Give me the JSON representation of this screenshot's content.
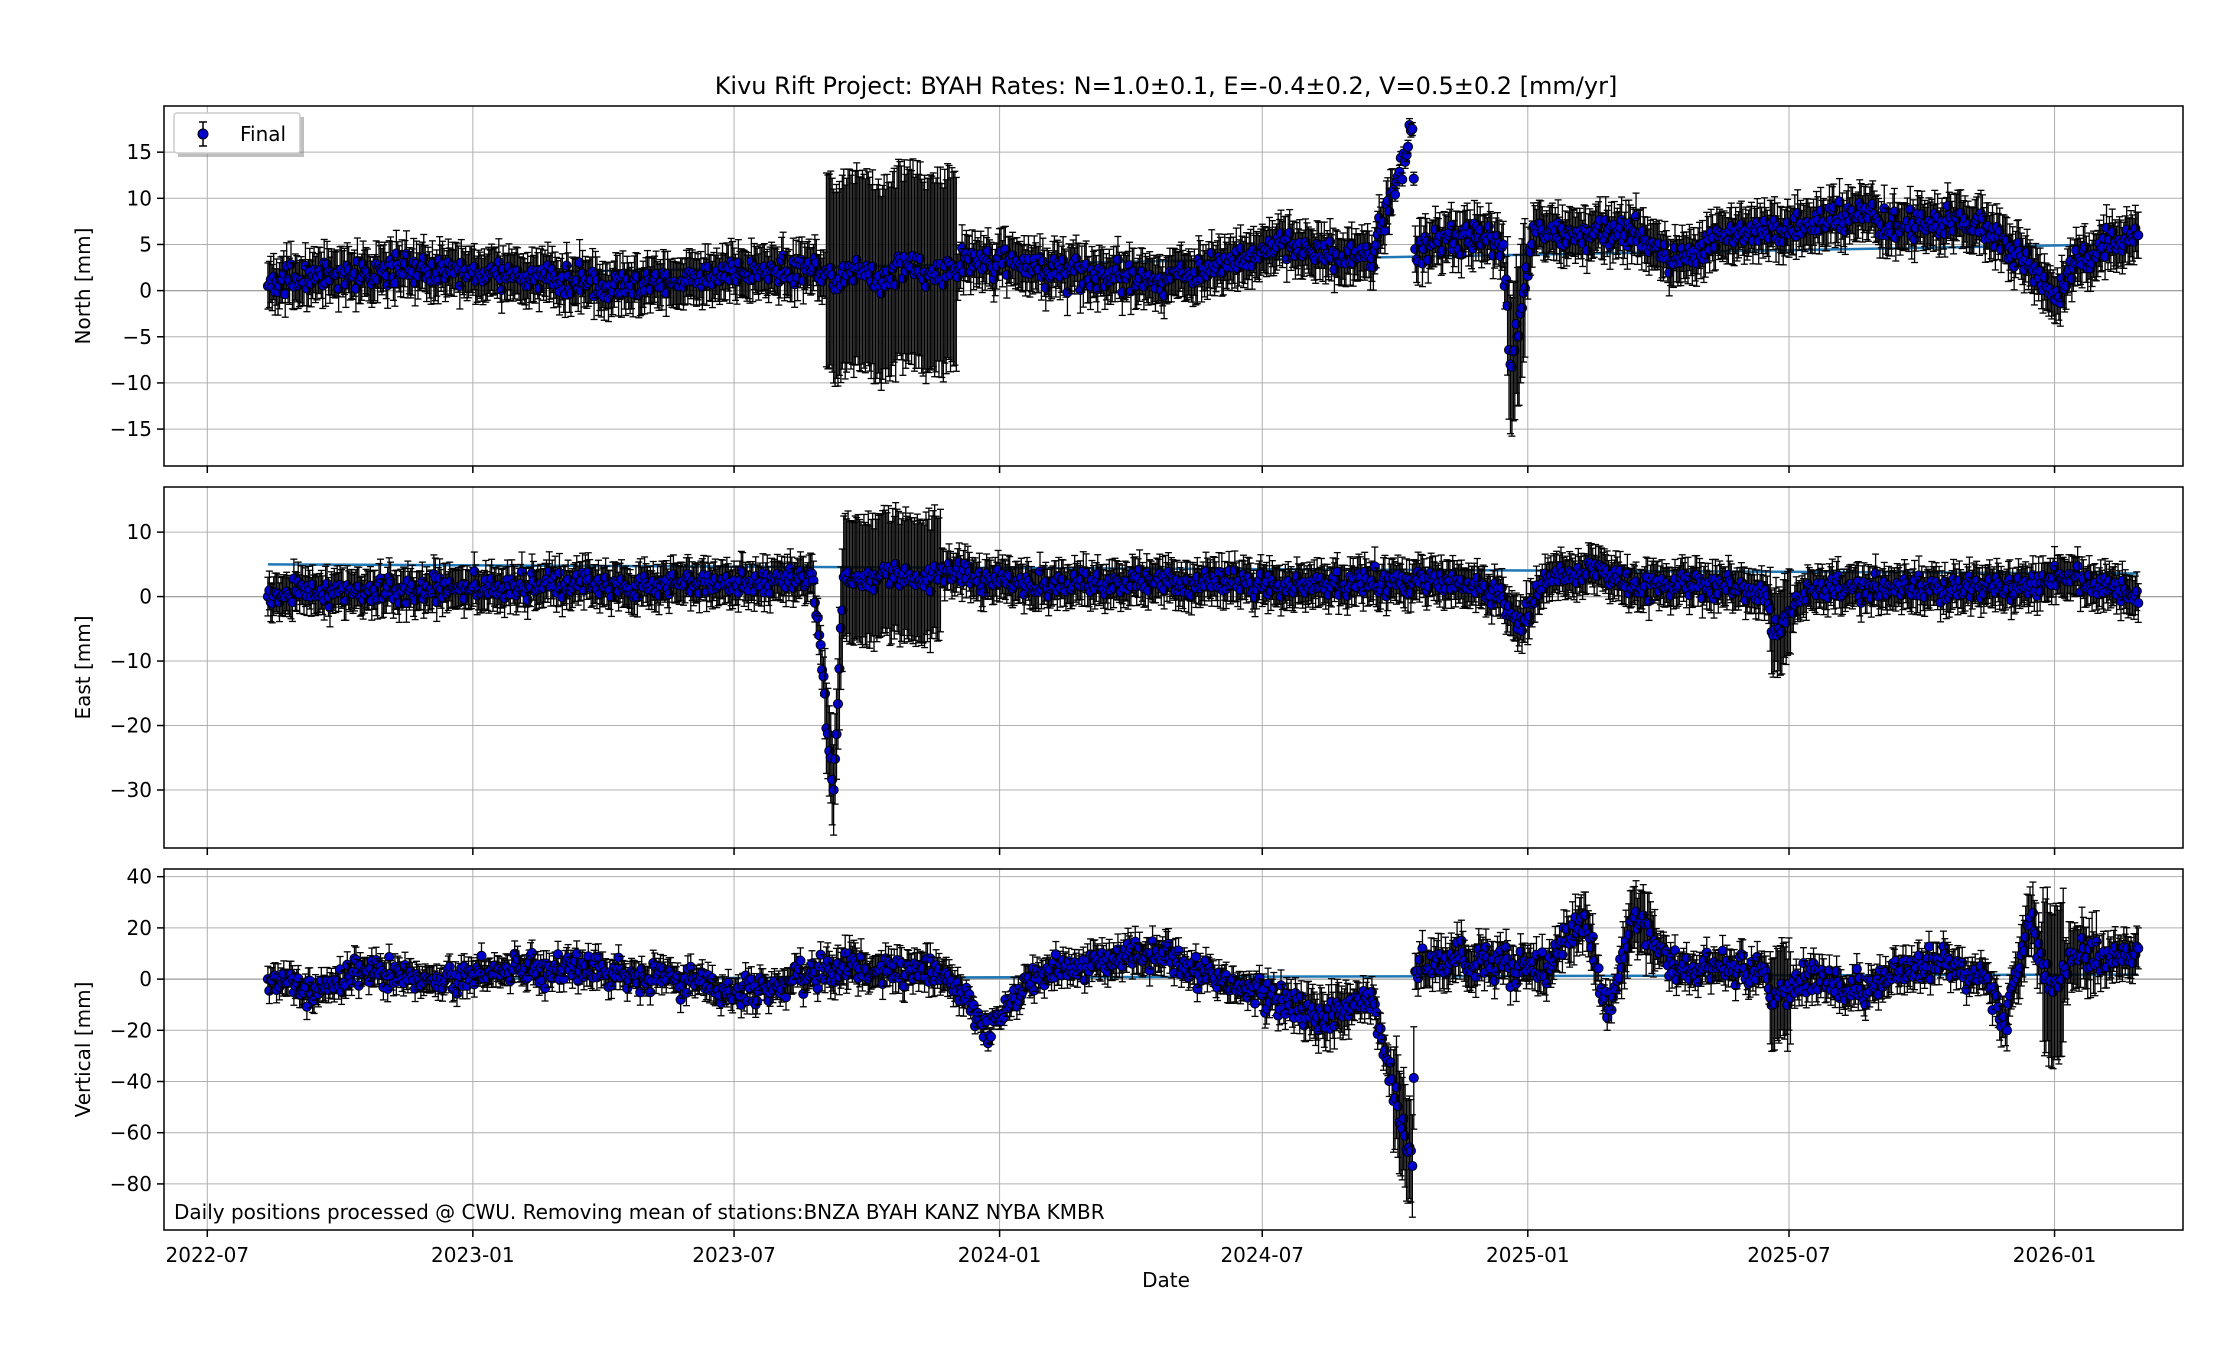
{
  "figure": {
    "title": "Kivu Rift Project: BYAH  Rates: N=1.0±0.1, E=-0.4±0.2, V=0.5±0.2 [mm/yr]",
    "xlabel": "Date",
    "footnote": "Daily positions processed @ CWU. Removing mean of stations:BNZA BYAH KANZ NYBA KMBR",
    "legend_label": "Final",
    "legend_placement": "top-left",
    "marker_color": "#0000cc",
    "fit_color": "#1f77b4",
    "grid": true
  },
  "chart_data": [
    {
      "type": "scatter",
      "panel": "north",
      "title": "",
      "xlabel": "",
      "ylabel": "North [mm]",
      "x_axis": "date",
      "xlim": [
        "2022-06-01",
        "2026-03-31"
      ],
      "ylim": [
        -19,
        20
      ],
      "yticks": [
        -15,
        -10,
        -5,
        0,
        5,
        10,
        15
      ],
      "xticks": [
        "2022-07",
        "2023-01",
        "2023-07",
        "2024-01",
        "2024-07",
        "2025-01",
        "2025-07",
        "2026-01"
      ],
      "rate_mm_per_yr": 1.0,
      "rate_err": 0.1,
      "data_start": "2022-08-12",
      "data_end": "2026-02-28",
      "series": [
        {
          "name": "Final",
          "x": [
            "2022-08-12",
            "2022-09-15",
            "2022-10-20",
            "2022-11-25",
            "2023-01-01",
            "2023-02-05",
            "2023-03-12",
            "2023-04-16",
            "2023-05-21",
            "2023-06-25",
            "2023-07-30",
            "2023-08-25",
            "2023-09-10",
            "2023-09-25",
            "2023-10-10",
            "2023-10-25",
            "2023-11-10",
            "2023-11-25",
            "2023-12-10",
            "2023-12-25",
            "2024-01-20",
            "2024-02-15",
            "2024-03-15",
            "2024-04-15",
            "2024-05-15",
            "2024-06-15",
            "2024-07-15",
            "2024-08-15",
            "2024-09-15",
            "2024-10-13",
            "2024-10-15",
            "2024-11-15",
            "2024-12-15",
            "2024-12-20",
            "2024-12-25",
            "2025-01-05",
            "2025-01-20",
            "2025-02-15",
            "2025-03-15",
            "2025-04-15",
            "2025-05-15",
            "2025-06-15",
            "2025-07-15",
            "2025-08-15",
            "2025-09-15",
            "2025-10-15",
            "2025-11-15",
            "2025-12-15",
            "2026-01-01",
            "2026-01-15",
            "2026-02-15",
            "2026-02-28"
          ],
          "y": [
            0.5,
            1.5,
            2.0,
            2.5,
            2.0,
            1.5,
            1.0,
            0.5,
            1.0,
            1.5,
            2.0,
            2.5,
            1.0,
            2.5,
            0.5,
            3.0,
            2.0,
            1.5,
            3.5,
            3.0,
            2.5,
            2.0,
            1.5,
            1.0,
            2.0,
            3.0,
            5.0,
            4.0,
            3.5,
            17.5,
            4.5,
            6.0,
            5.0,
            -8.0,
            -5.0,
            7.0,
            6.5,
            6.0,
            6.5,
            3.0,
            6.0,
            6.5,
            7.0,
            8.0,
            7.0,
            7.5,
            7.0,
            3.0,
            -1.0,
            3.0,
            5.5,
            6.0
          ],
          "err": [
            2.5,
            2.5,
            2.5,
            2.5,
            2.5,
            2.5,
            2.5,
            2.5,
            2.5,
            2.5,
            2.5,
            2.5,
            10.5,
            10.5,
            10.5,
            10.5,
            10.5,
            10.5,
            2.5,
            2.5,
            2.5,
            2.5,
            2.5,
            2.5,
            2.5,
            2.5,
            2.5,
            2.5,
            2.5,
            0.7,
            2.5,
            2.5,
            2.5,
            7.5,
            7.5,
            2.5,
            2.5,
            2.5,
            2.5,
            2.5,
            2.5,
            2.5,
            2.5,
            2.5,
            2.5,
            2.5,
            2.5,
            2.5,
            2.5,
            2.5,
            2.5,
            2.5
          ]
        }
      ]
    },
    {
      "type": "scatter",
      "panel": "east",
      "title": "",
      "xlabel": "",
      "ylabel": "East [mm]",
      "x_axis": "date",
      "xlim": [
        "2022-06-01",
        "2026-03-31"
      ],
      "ylim": [
        -39,
        17
      ],
      "yticks": [
        -30,
        -20,
        -10,
        0,
        10
      ],
      "xticks": [
        "2022-07",
        "2023-01",
        "2023-07",
        "2024-01",
        "2024-07",
        "2025-01",
        "2025-07",
        "2026-01"
      ],
      "rate_mm_per_yr": -0.4,
      "rate_err": 0.2,
      "data_start": "2022-08-12",
      "data_end": "2026-02-28",
      "series": [
        {
          "name": "Final",
          "x": [
            "2022-08-12",
            "2022-09-15",
            "2022-10-20",
            "2022-11-25",
            "2023-01-01",
            "2023-02-05",
            "2023-03-12",
            "2023-04-16",
            "2023-05-21",
            "2023-06-25",
            "2023-07-30",
            "2023-08-25",
            "2023-09-08",
            "2023-09-15",
            "2023-09-30",
            "2023-10-15",
            "2023-10-30",
            "2023-11-15",
            "2023-11-28",
            "2023-12-15",
            "2024-01-15",
            "2024-02-15",
            "2024-03-15",
            "2024-04-15",
            "2024-05-15",
            "2024-06-15",
            "2024-07-15",
            "2024-08-15",
            "2024-09-15",
            "2024-10-15",
            "2024-11-15",
            "2024-12-15",
            "2024-12-25",
            "2025-01-15",
            "2025-02-15",
            "2025-03-15",
            "2025-04-15",
            "2025-05-15",
            "2025-06-15",
            "2025-06-20",
            "2025-07-15",
            "2025-08-15",
            "2025-09-15",
            "2025-10-15",
            "2025-11-15",
            "2025-12-15",
            "2026-01-05",
            "2026-02-15",
            "2026-02-28"
          ],
          "y": [
            0.0,
            0.5,
            1.0,
            1.0,
            1.5,
            1.5,
            2.0,
            1.5,
            2.0,
            2.0,
            2.5,
            2.5,
            -30.0,
            3.0,
            2.0,
            3.5,
            2.5,
            3.0,
            4.0,
            3.0,
            2.0,
            1.5,
            2.0,
            2.5,
            2.0,
            2.5,
            1.0,
            2.0,
            2.5,
            2.5,
            2.0,
            0.0,
            -5.0,
            3.0,
            4.5,
            2.0,
            1.5,
            2.0,
            1.0,
            -6.0,
            1.5,
            1.5,
            1.5,
            1.0,
            1.5,
            1.5,
            3.5,
            1.0,
            -1.0
          ],
          "err": [
            3.0,
            3.0,
            3.0,
            3.0,
            3.0,
            3.0,
            3.0,
            3.0,
            3.0,
            3.0,
            3.0,
            3.0,
            7.0,
            9.5,
            9.5,
            9.5,
            9.5,
            9.5,
            3.0,
            3.0,
            3.0,
            3.0,
            3.0,
            3.0,
            3.0,
            3.0,
            3.0,
            3.0,
            3.0,
            3.0,
            3.0,
            3.0,
            3.5,
            3.0,
            3.0,
            3.0,
            3.0,
            3.0,
            3.0,
            6.5,
            3.0,
            3.0,
            3.0,
            3.0,
            3.0,
            3.0,
            3.0,
            3.0,
            3.0
          ]
        }
      ]
    },
    {
      "type": "scatter",
      "panel": "vertical",
      "title": "",
      "xlabel": "Date",
      "ylabel": "Vertical [mm]",
      "x_axis": "date",
      "xlim": [
        "2022-06-01",
        "2026-03-31"
      ],
      "ylim": [
        -98,
        43
      ],
      "yticks": [
        -80,
        -60,
        -40,
        -20,
        0,
        20,
        40
      ],
      "xticks": [
        "2022-07",
        "2023-01",
        "2023-07",
        "2024-01",
        "2024-07",
        "2025-01",
        "2025-07",
        "2026-01"
      ],
      "rate_mm_per_yr": 0.5,
      "rate_err": 0.2,
      "data_start": "2022-08-12",
      "data_end": "2026-02-28",
      "series": [
        {
          "name": "Final",
          "x": [
            "2022-08-12",
            "2022-09-15",
            "2022-10-20",
            "2022-11-25",
            "2023-01-01",
            "2023-02-05",
            "2023-03-12",
            "2023-04-16",
            "2023-05-21",
            "2023-06-25",
            "2023-07-30",
            "2023-08-25",
            "2023-09-10",
            "2023-10-15",
            "2023-11-20",
            "2023-12-25",
            "2024-01-20",
            "2024-02-15",
            "2024-03-15",
            "2024-04-15",
            "2024-05-15",
            "2024-06-15",
            "2024-07-15",
            "2024-08-15",
            "2024-09-15",
            "2024-10-13",
            "2024-10-15",
            "2024-11-15",
            "2024-12-15",
            "2025-01-15",
            "2025-02-10",
            "2025-02-25",
            "2025-03-15",
            "2025-04-15",
            "2025-05-15",
            "2025-06-15",
            "2025-06-20",
            "2025-07-15",
            "2025-08-15",
            "2025-09-15",
            "2025-10-15",
            "2025-11-15",
            "2025-11-28",
            "2025-12-15",
            "2025-12-31",
            "2026-01-15",
            "2026-02-15",
            "2026-02-28"
          ],
          "y": [
            0,
            -5,
            3,
            0,
            2,
            3,
            5,
            2,
            0,
            -5,
            -3,
            2,
            5,
            3,
            4,
            -22,
            0,
            5,
            8,
            10,
            3,
            -2,
            -8,
            -15,
            -5,
            -73,
            3,
            8,
            5,
            5,
            25,
            -15,
            24,
            3,
            5,
            3,
            -10,
            2,
            -5,
            3,
            8,
            0,
            -18,
            24,
            -5,
            10,
            8,
            12
          ],
          "err": [
            5,
            5,
            5,
            5,
            5,
            5,
            5,
            5,
            5,
            5,
            5,
            5,
            7,
            6,
            6,
            3,
            5,
            5,
            6,
            6,
            5,
            5,
            6,
            9,
            6,
            20,
            7,
            8,
            7,
            7,
            9,
            5,
            12,
            6,
            6,
            6,
            18,
            6,
            6,
            6,
            6,
            6,
            8,
            12,
            30,
            12,
            8,
            8
          ]
        }
      ]
    }
  ]
}
